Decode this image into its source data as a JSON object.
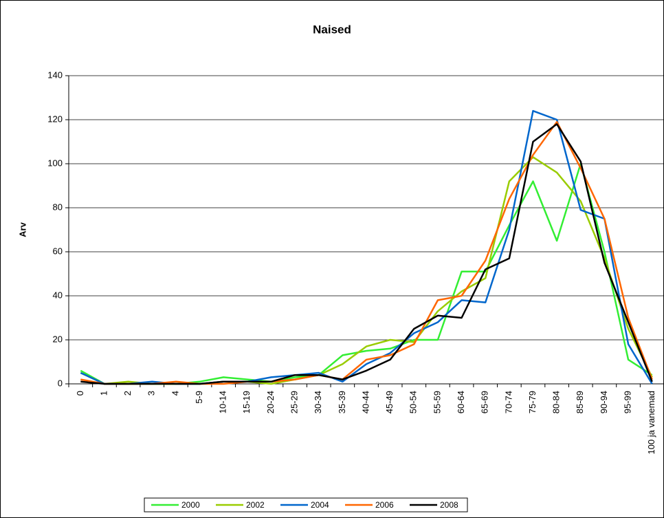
{
  "chart_data": {
    "type": "line",
    "title": "Naised",
    "y_label": "Arv",
    "categories": [
      "0",
      "1",
      "2",
      "3",
      "4",
      "5-9",
      "10-14",
      "15-19",
      "20-24",
      "25-29",
      "30-34",
      "35-39",
      "40-44",
      "45-49",
      "50-54",
      "55-59",
      "60-64",
      "65-69",
      "70-74",
      "75-79",
      "80-84",
      "85-89",
      "90-94",
      "95-99",
      "100 ja vanemad"
    ],
    "series": [
      {
        "name": "2000",
        "color": "#33ee33",
        "values": [
          6,
          0,
          0,
          0,
          0,
          1,
          3,
          2,
          1,
          3,
          4,
          13,
          15,
          16,
          20,
          20,
          51,
          51,
          72,
          92,
          65,
          100,
          60,
          11,
          4
        ]
      },
      {
        "name": "2002",
        "color": "#99cc00",
        "values": [
          5,
          0,
          1,
          0,
          0,
          0,
          1,
          1,
          0,
          2,
          4,
          9,
          17,
          20,
          19,
          33,
          42,
          48,
          92,
          103,
          96,
          83,
          57,
          25,
          3
        ]
      },
      {
        "name": "2004",
        "color": "#0066cc",
        "values": [
          5,
          0,
          0,
          1,
          0,
          0,
          1,
          1,
          3,
          4,
          5,
          1,
          9,
          14,
          23,
          28,
          38,
          37,
          70,
          124,
          120,
          79,
          75,
          18,
          0
        ]
      },
      {
        "name": "2006",
        "color": "#ff6600",
        "values": [
          2,
          0,
          0,
          0,
          1,
          0,
          0,
          1,
          1,
          2,
          4,
          2,
          11,
          13,
          18,
          38,
          40,
          56,
          84,
          104,
          119,
          98,
          75,
          30,
          2
        ]
      },
      {
        "name": "2008",
        "color": "#000000",
        "values": [
          1,
          0,
          0,
          0,
          0,
          0,
          1,
          1,
          1,
          4,
          4,
          2,
          6,
          11,
          25,
          31,
          30,
          52,
          57,
          110,
          118,
          101,
          55,
          28,
          1
        ]
      }
    ],
    "ylim": [
      0,
      140
    ],
    "yticks": [
      0,
      20,
      40,
      60,
      80,
      100,
      120,
      140
    ],
    "grid": true,
    "legend": "bottom"
  }
}
